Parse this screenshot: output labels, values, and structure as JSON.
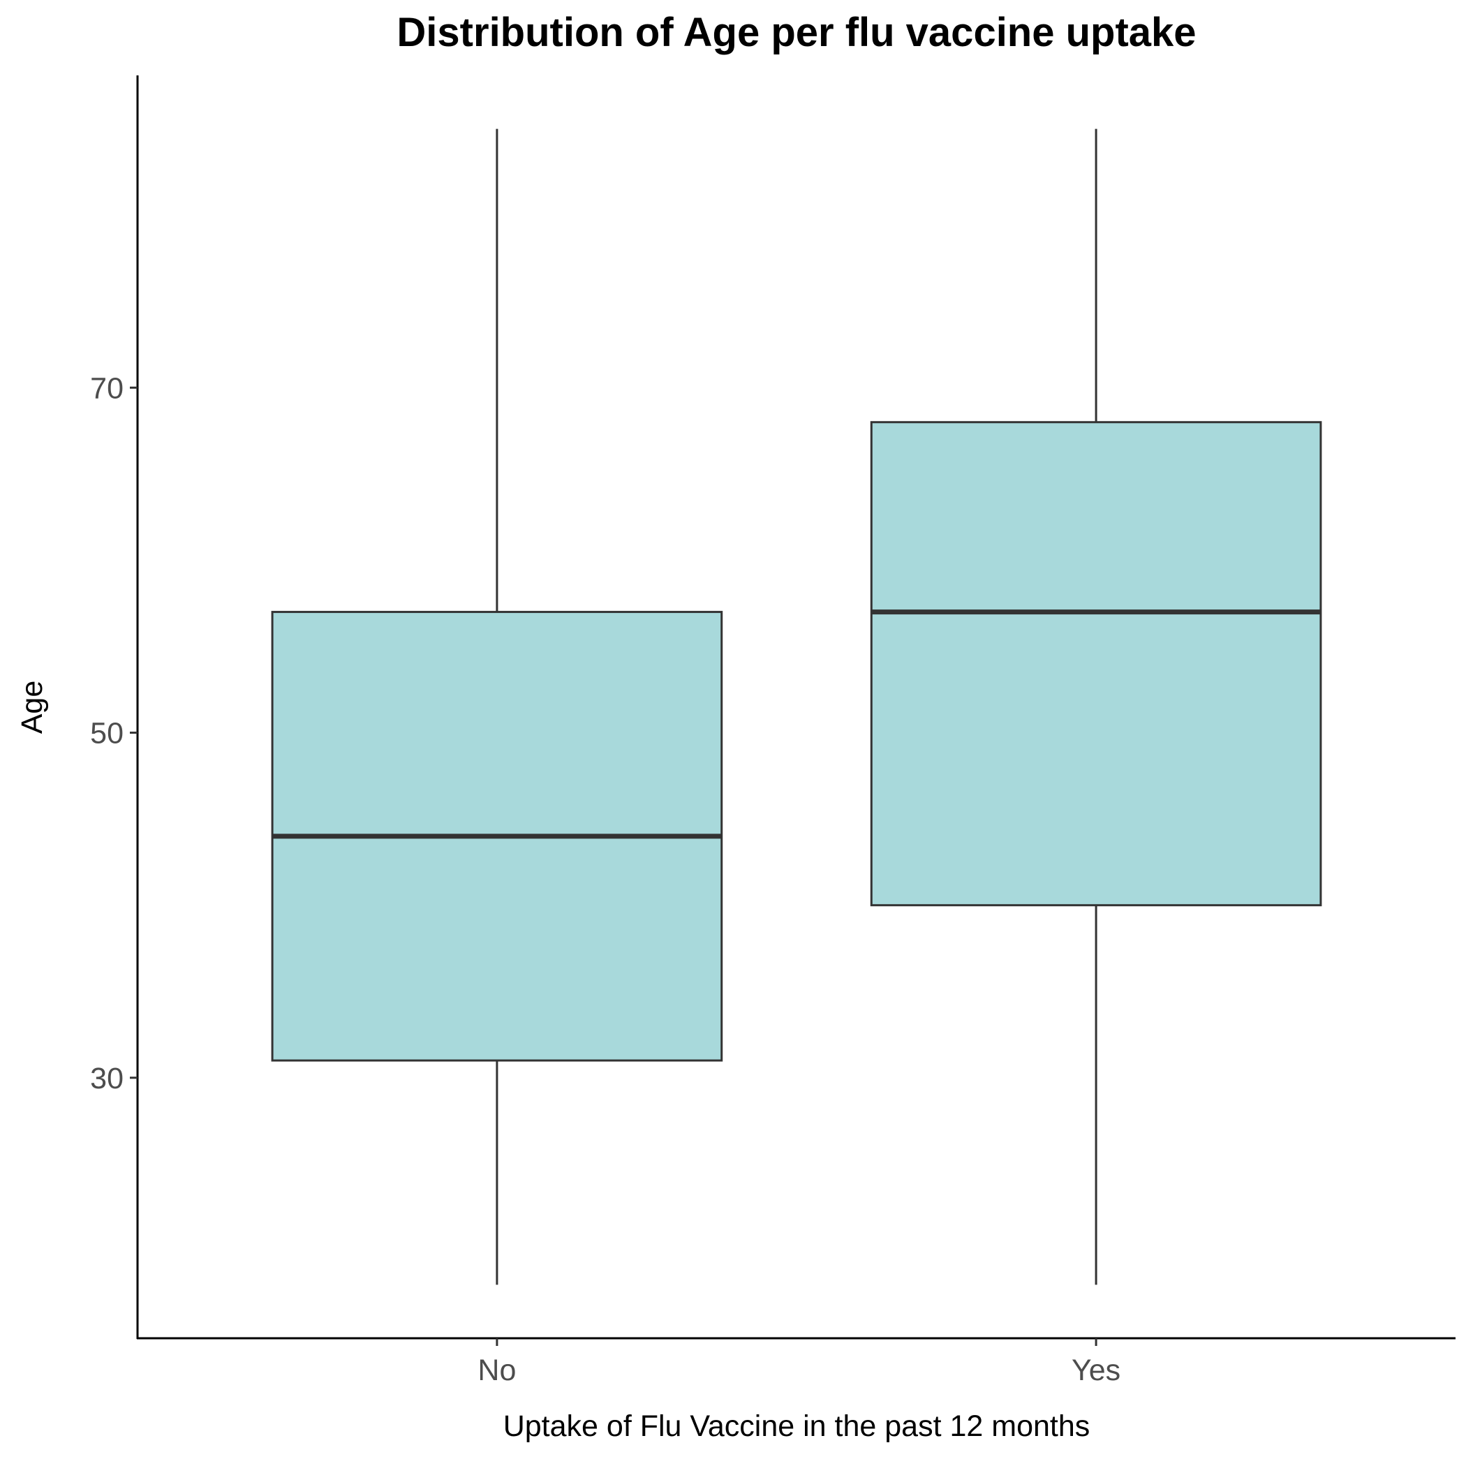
{
  "chart_data": {
    "type": "boxplot",
    "title": "Distribution of Age per flu vaccine uptake",
    "xlabel": "Uptake of Flu Vaccine in the past 12 months",
    "ylabel": "Age",
    "categories": [
      "No",
      "Yes"
    ],
    "boxes": [
      {
        "category": "No",
        "min": 18,
        "q1": 31,
        "median": 44,
        "q3": 57,
        "max": 85
      },
      {
        "category": "Yes",
        "min": 18,
        "q1": 40,
        "median": 57,
        "q3": 68,
        "max": 85
      }
    ],
    "yticks": [
      30,
      50,
      70
    ],
    "ylim": [
      14.9,
      88.1
    ],
    "box_fill": "#a8d9db",
    "stroke_color": "#333333",
    "grid": false,
    "legend": "none"
  }
}
